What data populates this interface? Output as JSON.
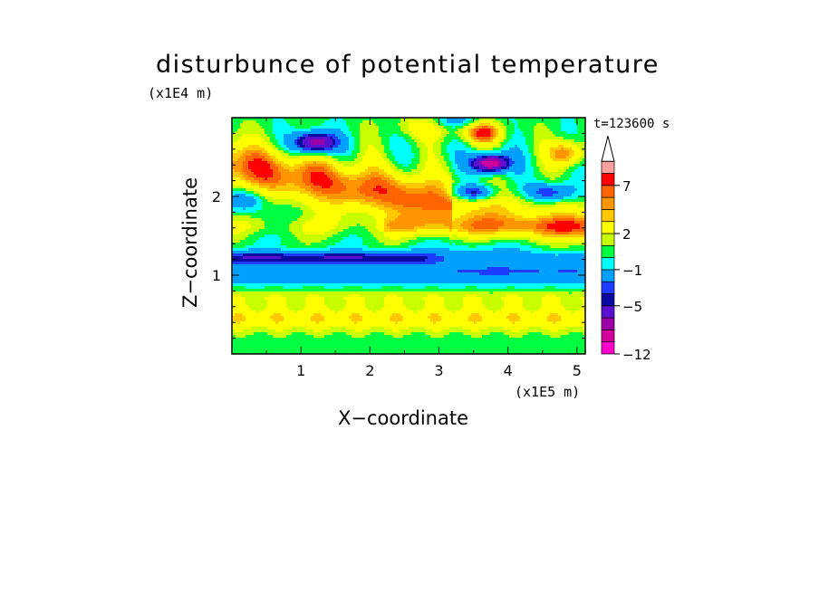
{
  "title": "disturbunce of potential temperature",
  "time_label": "t=123600 s",
  "x_unit": "(x1E5 m)",
  "z_unit": "(x1E4 m)",
  "xlabel": "X−coordinate",
  "ylabel": "Z−coordinate",
  "chart_data": {
    "type": "heatmap",
    "title": "disturbunce of potential temperature",
    "xlabel": "X−coordinate",
    "ylabel": "Z−coordinate",
    "x_unit": "(x1E5 m)",
    "z_unit": "(x1E4 m)",
    "xlim": [
      0,
      5.12
    ],
    "ylim": [
      0,
      3.0
    ],
    "x_ticks": [
      {
        "value": 1,
        "label": "1"
      },
      {
        "value": 2,
        "label": "2"
      },
      {
        "value": 3,
        "label": "3"
      },
      {
        "value": 4,
        "label": "4"
      },
      {
        "value": 5,
        "label": "5"
      }
    ],
    "y_ticks": [
      {
        "value": 1,
        "label": "1"
      },
      {
        "value": 2,
        "label": "2"
      }
    ],
    "colorbar": {
      "levels": [
        -12,
        -10,
        -8,
        -7,
        -5,
        -4,
        -3,
        -1,
        0,
        1,
        2,
        4,
        5,
        6,
        7,
        9,
        10
      ],
      "colors": [
        "#ff00cc",
        "#d4009b",
        "#9c00a8",
        "#5a10d0",
        "#0a0aa0",
        "#1e3cff",
        "#00a0ff",
        "#00ffff",
        "#00ff40",
        "#c8ff00",
        "#ffff00",
        "#ffc800",
        "#ff9600",
        "#ff6400",
        "#ff0000",
        "#ffa0a0"
      ],
      "labels": [
        {
          "value": -12,
          "label": "−12"
        },
        {
          "value": -5,
          "label": "−5"
        },
        {
          "value": -1,
          "label": "−1"
        },
        {
          "value": 2,
          "label": "2"
        },
        {
          "value": 7,
          "label": "7"
        }
      ],
      "extend": "max"
    },
    "field_description": "Layered field: warm bands (yellow to red, 2 to 9) near z 0.3-0.6 and 1.5-2.6; cold band (blue, -5 to -3) near z 1.1-1.3 at x < 2.5; cyan (-1) layer z 0.9-1.4 at x > 2.5; intense cold cores (-8 to -10) near x 1.1, z 2.6 and x 3.7, z 2.4; warm cores up to 9 near x 3.6, z 2.8.",
    "grid": false
  }
}
